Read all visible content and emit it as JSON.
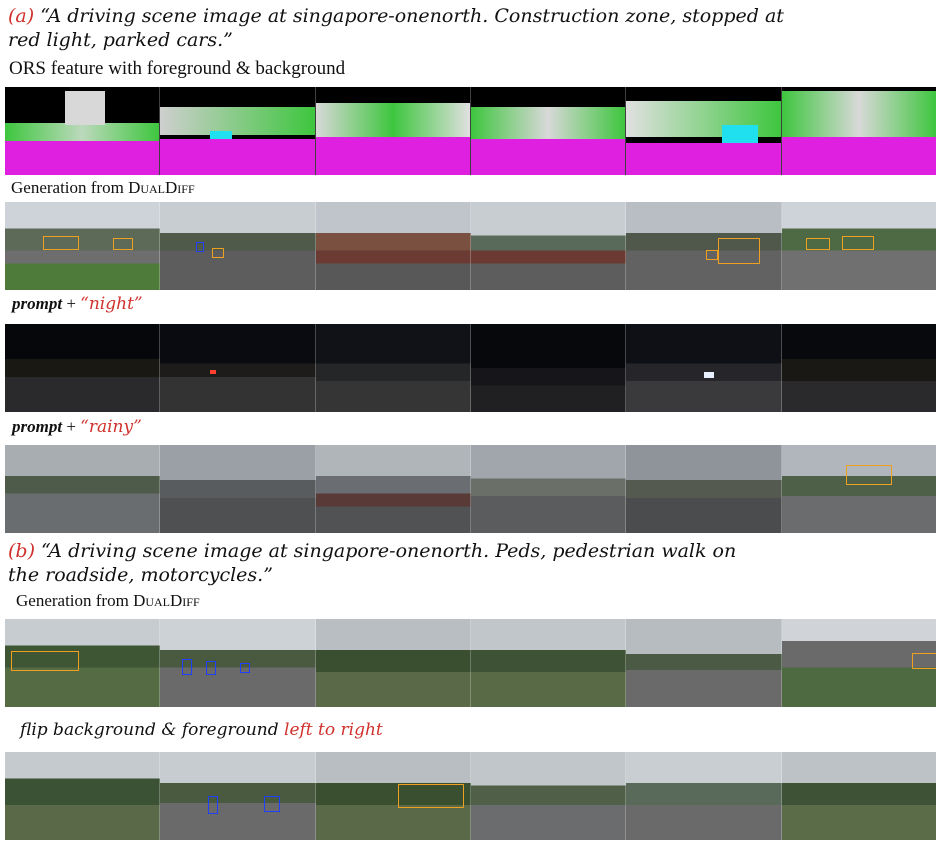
{
  "panel_a": {
    "letter": "(a)",
    "caption_line1": "“A driving scene image at singapore-onenorth. Construction zone, stopped at",
    "caption_line2": "red light, parked cars.”",
    "ors_label": "ORS feature with foreground & background",
    "gen_label_prefix": "Generation from ",
    "gen_label_model": "DualDiff",
    "night_prompt": "prompt",
    "night_plus": " + ",
    "night_value": "“night”",
    "rainy_prompt": "prompt",
    "rainy_plus": " + ",
    "rainy_value": "“rainy”"
  },
  "panel_b": {
    "letter": "(b)",
    "caption_line1": "“A driving scene image at singapore-onenorth. Peds, pedestrian walk on",
    "caption_line2": "the roadside, motorcycles.”",
    "gen_label_prefix": "Generation from ",
    "gen_label_model": "DualDiff",
    "flip_text": "flip background & foreground ",
    "flip_highlight": "left to right"
  },
  "colors": {
    "accent_red": "#d0312d",
    "bbox_orange": "#f0a020",
    "bbox_blue": "#2040ff",
    "ors_magenta": "#e020e0",
    "ors_green": "#3ec63e",
    "ors_cyan": "#20e0f0"
  }
}
